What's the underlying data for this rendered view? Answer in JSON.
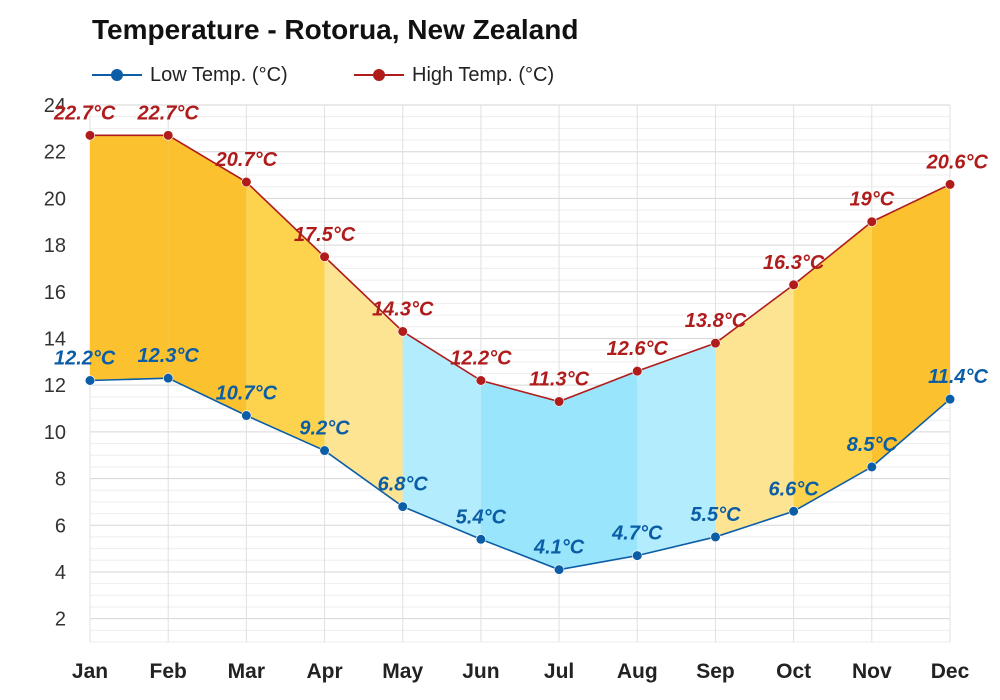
{
  "chart_data": {
    "type": "line",
    "title": "Temperature - Rotorua, New Zealand",
    "xlabel": "",
    "ylabel": "",
    "categories": [
      "Jan",
      "Feb",
      "Mar",
      "Apr",
      "May",
      "Jun",
      "Jul",
      "Aug",
      "Sep",
      "Oct",
      "Nov",
      "Dec"
    ],
    "series": [
      {
        "name": "Low Temp. (°C)",
        "color": "#0b5da6",
        "values": [
          12.2,
          12.3,
          10.7,
          9.2,
          6.8,
          5.4,
          4.1,
          4.7,
          5.5,
          6.6,
          8.5,
          11.4
        ],
        "labels": [
          "12.2°C",
          "12.3°C",
          "10.7°C",
          "9.2°C",
          "6.8°C",
          "5.4°C",
          "4.1°C",
          "4.7°C",
          "5.5°C",
          "6.6°C",
          "8.5°C",
          "11.4°C"
        ]
      },
      {
        "name": "High Temp. (°C)",
        "color": "#b01c1c",
        "values": [
          22.7,
          22.7,
          20.7,
          17.5,
          14.3,
          12.2,
          11.3,
          12.6,
          13.8,
          16.3,
          19,
          20.6
        ],
        "labels": [
          "22.7°C",
          "22.7°C",
          "20.7°C",
          "17.5°C",
          "14.3°C",
          "12.2°C",
          "11.3°C",
          "12.6°C",
          "13.8°C",
          "16.3°C",
          "19°C",
          "20.6°C"
        ]
      }
    ],
    "ylim": [
      1,
      24
    ],
    "yticks": [
      2,
      4,
      6,
      8,
      10,
      12,
      14,
      16,
      18,
      20,
      22,
      24
    ],
    "grid": true,
    "legend": "top-left",
    "fill_colors": [
      "#fbc12f",
      "#fbc12f",
      "#fdd34e",
      "#fde493",
      "#b3ecfc",
      "#99e5fb",
      "#99e5fb",
      "#b3ecfc",
      "#fde493",
      "#fdd34e",
      "#fbc12f",
      "#fbc12f"
    ]
  }
}
